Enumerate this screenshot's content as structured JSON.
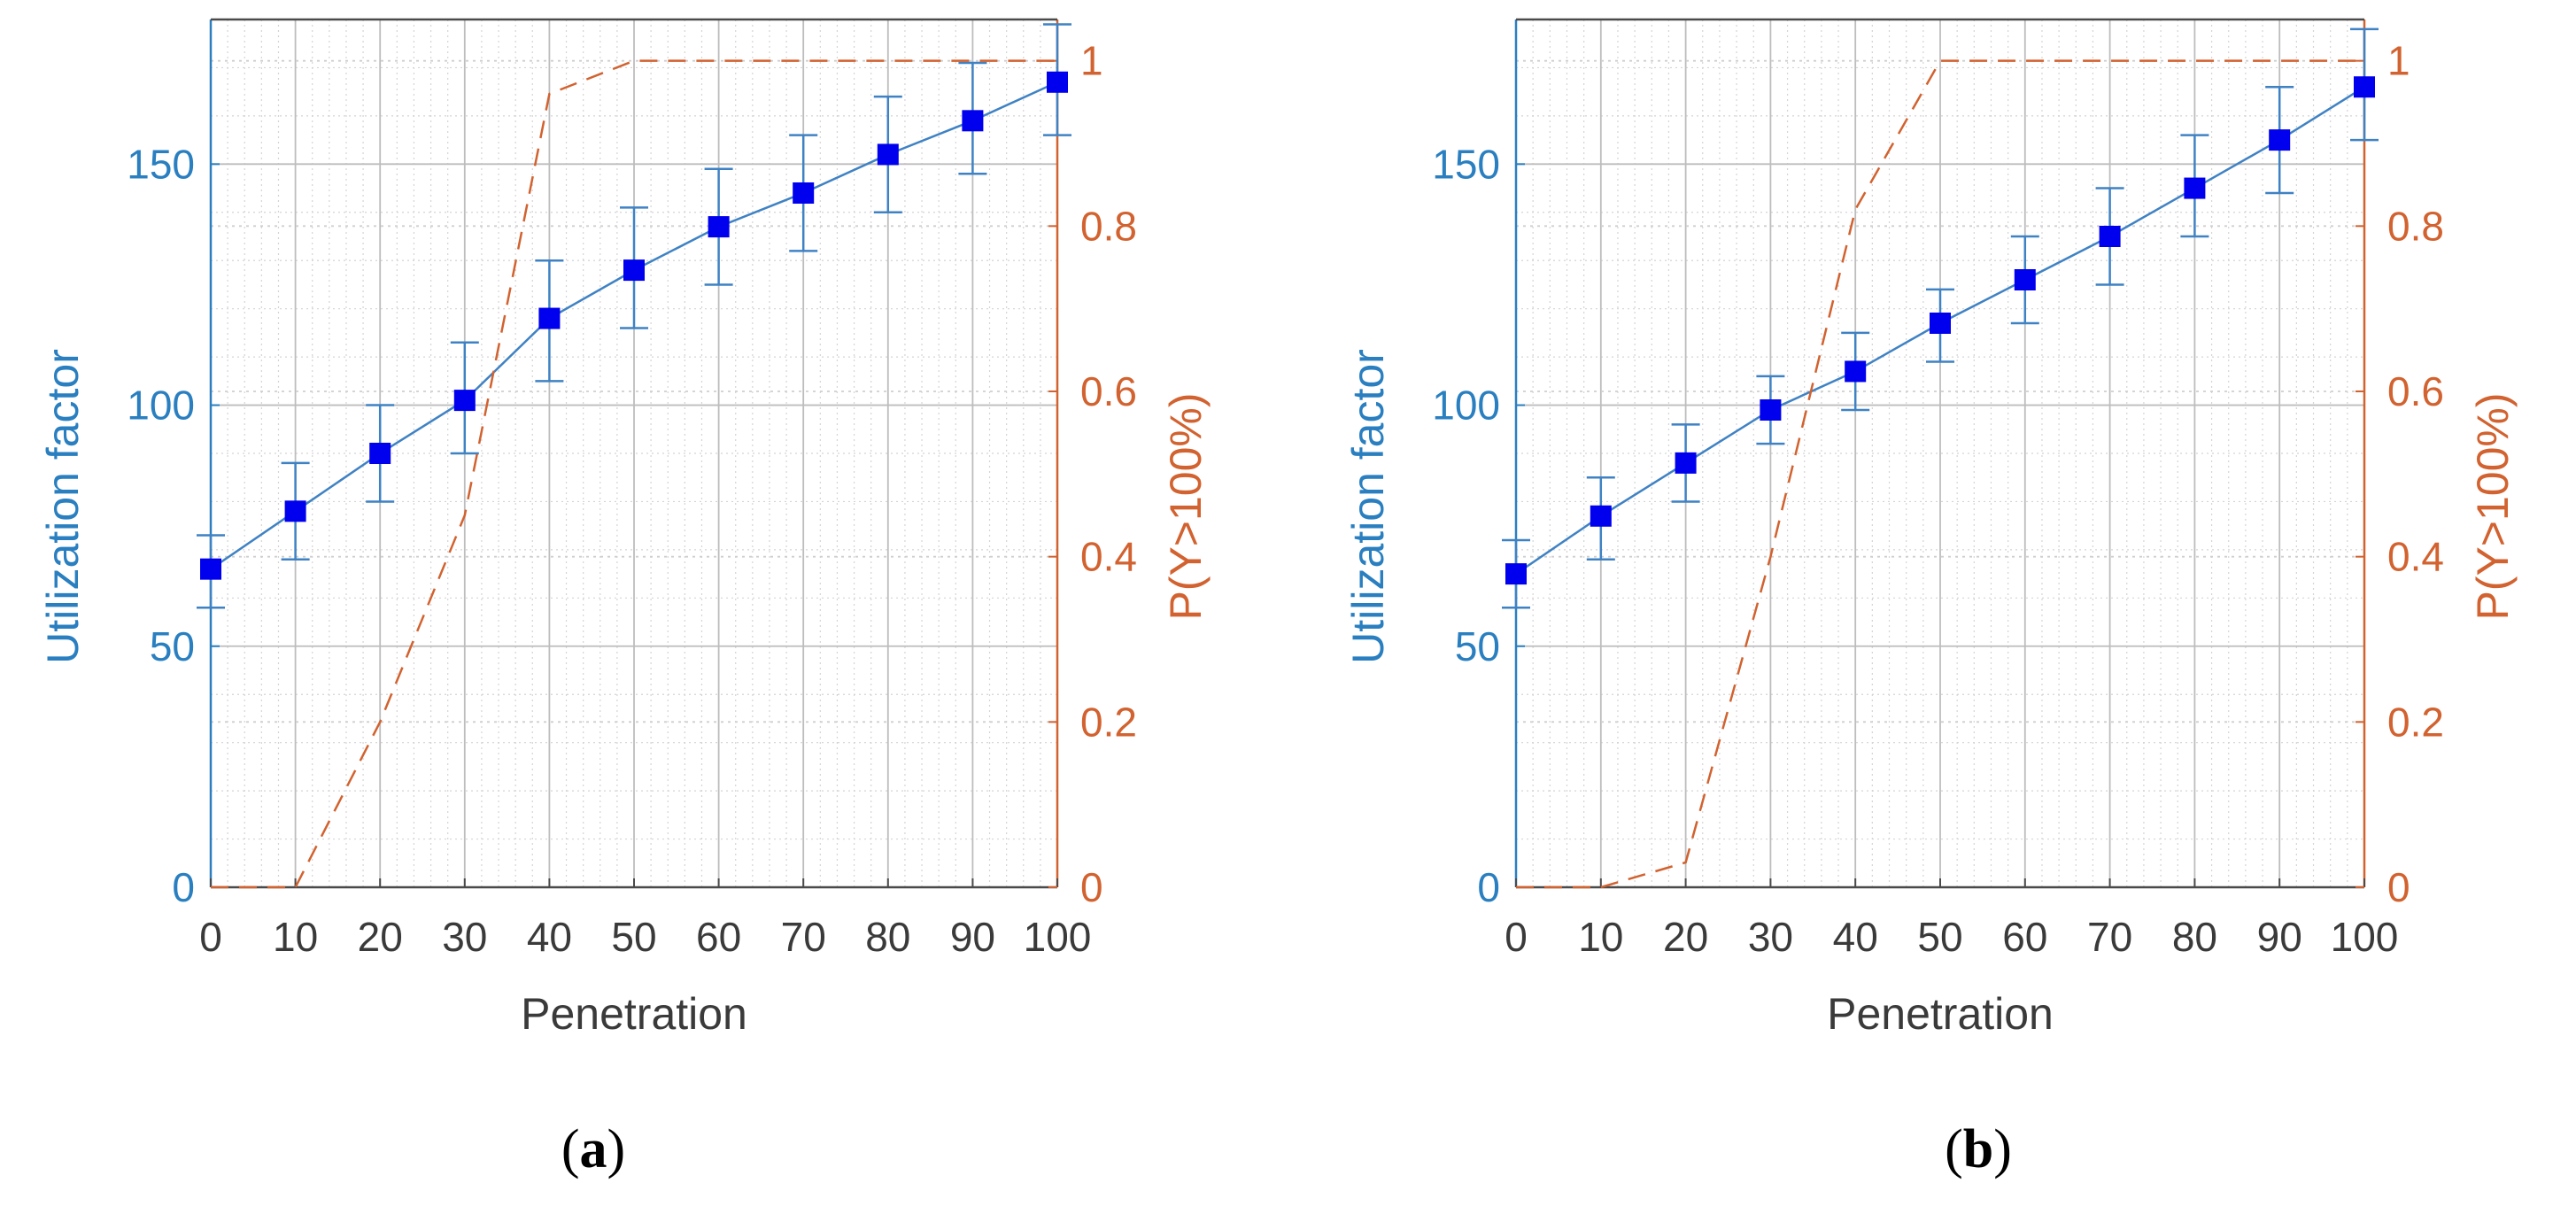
{
  "chart_data": [
    {
      "type": "line",
      "panel_label": "a",
      "xlabel": "Penetration",
      "ylabel_left": "Utilization factor",
      "ylabel_right": "P(Y>100%)",
      "x": [
        0,
        10,
        20,
        30,
        40,
        50,
        60,
        70,
        80,
        90,
        100
      ],
      "xlim": [
        0,
        100
      ],
      "ylim_left": [
        0,
        180
      ],
      "ylim_right": [
        0,
        1.05
      ],
      "xticks": [
        "0",
        "10",
        "20",
        "30",
        "40",
        "50",
        "60",
        "70",
        "80",
        "90",
        "100"
      ],
      "yticks_left": [
        "0",
        "50",
        "100",
        "150"
      ],
      "yticks_right": [
        "0",
        "0.2",
        "0.4",
        "0.6",
        "0.8",
        "1"
      ],
      "grid": true,
      "series": [
        {
          "axis": "left",
          "style": "solid-square-markers-errorbars",
          "color": "#0000ee",
          "line_color": "#3f82c4",
          "values": [
            66,
            78,
            90,
            101,
            118,
            128,
            137,
            144,
            152,
            159,
            167
          ],
          "error_low": [
            58,
            68,
            80,
            90,
            105,
            116,
            125,
            132,
            140,
            148,
            156
          ],
          "error_high": [
            73,
            88,
            100,
            113,
            130,
            141,
            149,
            156,
            164,
            171,
            179
          ]
        },
        {
          "axis": "right",
          "style": "dashed",
          "color": "#d2622f",
          "values": [
            0,
            0,
            0.2,
            0.45,
            0.96,
            1,
            1,
            1,
            1,
            1,
            1
          ]
        }
      ]
    },
    {
      "type": "line",
      "panel_label": "b",
      "xlabel": "Penetration",
      "ylabel_left": "Utilization factor",
      "ylabel_right": "P(Y>100%)",
      "x": [
        0,
        10,
        20,
        30,
        40,
        50,
        60,
        70,
        80,
        90,
        100
      ],
      "xlim": [
        0,
        100
      ],
      "ylim_left": [
        0,
        180
      ],
      "ylim_right": [
        0,
        1.05
      ],
      "xticks": [
        "0",
        "10",
        "20",
        "30",
        "40",
        "50",
        "60",
        "70",
        "80",
        "90",
        "100"
      ],
      "yticks_left": [
        "0",
        "50",
        "100",
        "150"
      ],
      "yticks_right": [
        "0",
        "0.2",
        "0.4",
        "0.6",
        "0.8",
        "1"
      ],
      "grid": true,
      "series": [
        {
          "axis": "left",
          "style": "solid-square-markers-errorbars",
          "color": "#0000ee",
          "line_color": "#3f82c4",
          "values": [
            65,
            77,
            88,
            99,
            107,
            117,
            126,
            135,
            145,
            155,
            166
          ],
          "error_low": [
            58,
            68,
            80,
            92,
            99,
            109,
            117,
            125,
            135,
            144,
            155
          ],
          "error_high": [
            72,
            85,
            96,
            106,
            115,
            124,
            135,
            145,
            156,
            166,
            178
          ]
        },
        {
          "axis": "right",
          "style": "dashed",
          "color": "#d2622f",
          "values": [
            0,
            0,
            0.03,
            0.4,
            0.82,
            1,
            1,
            1,
            1,
            1,
            1
          ]
        }
      ]
    }
  ]
}
